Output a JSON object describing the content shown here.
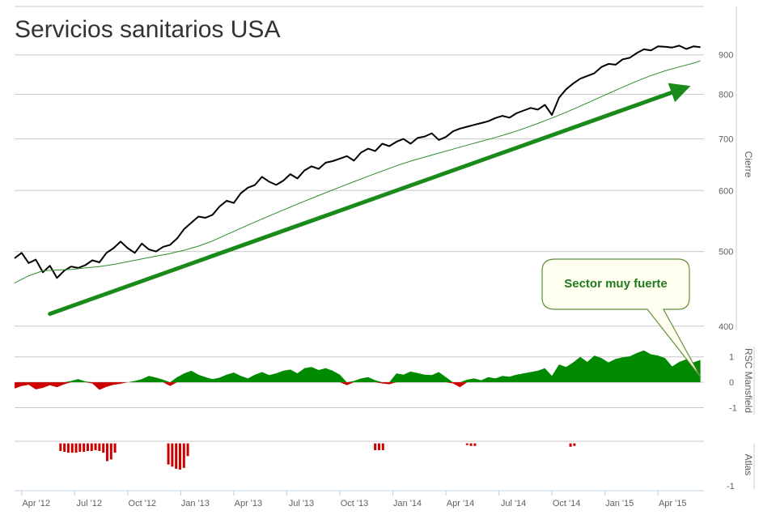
{
  "chart_data": [
    {
      "panel": "price",
      "type": "line",
      "title": "Servicios sanitarios USA",
      "ylabel": "Cierre",
      "xlabel": "",
      "yscale": "log",
      "y_ticks": [
        400,
        500,
        600,
        700,
        800,
        900
      ],
      "y_tick_labels": [
        "400",
        "500",
        "600",
        "700",
        "800",
        "900"
      ],
      "ylim": [
        380,
        1040
      ],
      "x_ticks": [
        "Apr '12",
        "Jul '12",
        "Oct '12",
        "Jan '13",
        "Apr '13",
        "Jul '13",
        "Oct '13",
        "Jan '14",
        "Apr '14",
        "Jul '14",
        "Oct '14",
        "Jan '15",
        "Apr '15"
      ],
      "x_tick_pos": [
        0.2,
        3.2,
        6.2,
        9.2,
        12.2,
        15.2,
        18.2,
        21.2,
        24.2,
        27.2,
        30.2,
        33.2,
        36.2
      ],
      "xlim": [
        -0.2,
        38.8
      ],
      "grid": true,
      "series": [
        {
          "role": "close",
          "color": "#000000",
          "x": [
            -0.2,
            0.2,
            0.6,
            1.0,
            1.4,
            1.8,
            2.2,
            2.6,
            3.0,
            3.4,
            3.8,
            4.2,
            4.6,
            5.0,
            5.4,
            5.8,
            6.2,
            6.6,
            7.0,
            7.4,
            7.8,
            8.2,
            8.6,
            9.0,
            9.4,
            9.8,
            10.2,
            10.6,
            11.0,
            11.4,
            11.8,
            12.2,
            12.6,
            13.0,
            13.4,
            13.8,
            14.2,
            14.6,
            15.0,
            15.4,
            15.8,
            16.2,
            16.6,
            17.0,
            17.4,
            17.8,
            18.2,
            18.6,
            19.0,
            19.4,
            19.8,
            20.2,
            20.6,
            21.0,
            21.4,
            21.8,
            22.2,
            22.6,
            23.0,
            23.4,
            23.8,
            24.2,
            24.6,
            25.0,
            25.4,
            25.8,
            26.2,
            26.6,
            27.0,
            27.4,
            27.8,
            28.2,
            28.6,
            29.0,
            29.4,
            29.8,
            30.2,
            30.6,
            31.0,
            31.4,
            31.8,
            32.2,
            32.6,
            33.0,
            33.4,
            33.8,
            34.2,
            34.6,
            35.0,
            35.4,
            35.8,
            36.2,
            36.6,
            37.0,
            37.4,
            37.8,
            38.2,
            38.6
          ],
          "values": [
            490,
            498,
            483,
            488,
            470,
            479,
            462,
            472,
            478,
            476,
            480,
            487,
            484,
            498,
            505,
            515,
            505,
            498,
            512,
            503,
            500,
            507,
            510,
            520,
            535,
            545,
            555,
            553,
            558,
            572,
            582,
            578,
            595,
            605,
            610,
            625,
            616,
            610,
            618,
            630,
            622,
            637,
            645,
            640,
            652,
            655,
            660,
            665,
            656,
            672,
            680,
            675,
            690,
            685,
            694,
            700,
            690,
            702,
            705,
            712,
            698,
            704,
            716,
            722,
            726,
            730,
            734,
            738,
            745,
            750,
            746,
            756,
            762,
            768,
            764,
            775,
            752,
            792,
            812,
            826,
            838,
            845,
            852,
            868,
            876,
            874,
            888,
            892,
            905,
            915,
            912,
            923,
            922,
            920,
            925,
            916,
            923,
            921
          ]
        },
        {
          "role": "moving-average",
          "color": "#2e8b2e",
          "x": [
            -0.2,
            0.6,
            1.4,
            2.2,
            3.0,
            3.8,
            4.6,
            5.4,
            6.2,
            7.0,
            7.8,
            8.6,
            9.4,
            10.2,
            11.0,
            11.8,
            12.6,
            13.4,
            14.2,
            15.0,
            15.8,
            16.6,
            17.4,
            18.2,
            19.0,
            19.8,
            20.6,
            21.4,
            22.2,
            23.0,
            23.8,
            24.6,
            25.4,
            26.2,
            27.0,
            27.8,
            28.6,
            29.4,
            30.2,
            31.0,
            31.8,
            32.6,
            33.4,
            34.2,
            35.0,
            35.8,
            36.6,
            37.4,
            38.2,
            38.6
          ],
          "values": [
            455,
            465,
            472,
            473,
            474,
            476,
            478,
            481,
            485,
            489,
            493,
            497,
            502,
            508,
            516,
            526,
            536,
            546,
            556,
            566,
            576,
            586,
            596,
            606,
            616,
            626,
            636,
            646,
            655,
            663,
            671,
            679,
            687,
            695,
            703,
            712,
            722,
            733,
            745,
            758,
            772,
            787,
            802,
            817,
            832,
            846,
            858,
            868,
            878,
            884
          ]
        }
      ],
      "trend_arrow": {
        "x": [
          1.8,
          37.5
        ],
        "values": [
          415,
          812
        ],
        "color": "#1a8a1a"
      },
      "annotations": [
        {
          "text": "Sector muy fuerte",
          "color": "#1f7a1f",
          "target_x": 38.4,
          "target_value": 0.72
        }
      ]
    },
    {
      "panel": "rsc",
      "type": "area",
      "ylabel": "RSC Mansfield",
      "y_ticks": [
        1,
        0,
        -1
      ],
      "y_tick_labels": [
        "1",
        "0",
        "-1"
      ],
      "ylim": [
        -1.4,
        1.5
      ],
      "positive_color": "#008a00",
      "negative_color": "#cc0000",
      "x": [
        -0.2,
        0.2,
        0.6,
        1.0,
        1.4,
        1.8,
        2.2,
        2.6,
        3.0,
        3.4,
        3.8,
        4.2,
        4.6,
        5.0,
        5.4,
        5.8,
        6.2,
        6.6,
        7.0,
        7.4,
        7.8,
        8.2,
        8.6,
        9.0,
        9.4,
        9.8,
        10.2,
        10.6,
        11.0,
        11.4,
        11.8,
        12.2,
        12.6,
        13.0,
        13.4,
        13.8,
        14.2,
        14.6,
        15.0,
        15.4,
        15.8,
        16.2,
        16.6,
        17.0,
        17.4,
        17.8,
        18.2,
        18.6,
        19.0,
        19.4,
        19.8,
        20.2,
        20.6,
        21.0,
        21.4,
        21.8,
        22.2,
        22.6,
        23.0,
        23.4,
        23.8,
        24.2,
        24.6,
        25.0,
        25.4,
        25.8,
        26.2,
        26.6,
        27.0,
        27.4,
        27.8,
        28.2,
        28.6,
        29.0,
        29.4,
        29.8,
        30.2,
        30.6,
        31.0,
        31.4,
        31.8,
        32.2,
        32.6,
        33.0,
        33.4,
        33.8,
        34.2,
        34.6,
        35.0,
        35.4,
        35.8,
        36.2,
        36.6,
        37.0,
        37.4,
        37.8,
        38.2,
        38.6
      ],
      "values": [
        -0.25,
        -0.15,
        -0.1,
        -0.28,
        -0.22,
        -0.12,
        -0.2,
        -0.08,
        0.05,
        0.12,
        0.03,
        -0.05,
        -0.3,
        -0.18,
        -0.1,
        -0.06,
        0.0,
        0.05,
        0.12,
        0.25,
        0.18,
        0.1,
        -0.15,
        0.2,
        0.35,
        0.45,
        0.3,
        0.2,
        0.12,
        0.18,
        0.3,
        0.38,
        0.25,
        0.15,
        0.3,
        0.4,
        0.28,
        0.35,
        0.45,
        0.5,
        0.35,
        0.55,
        0.6,
        0.48,
        0.55,
        0.45,
        0.3,
        -0.12,
        0.05,
        0.15,
        0.2,
        0.08,
        -0.05,
        -0.08,
        0.35,
        0.3,
        0.42,
        0.36,
        0.3,
        0.28,
        0.4,
        0.2,
        -0.05,
        -0.2,
        0.1,
        0.15,
        0.08,
        0.2,
        0.15,
        0.25,
        0.22,
        0.3,
        0.35,
        0.4,
        0.45,
        0.55,
        0.25,
        0.7,
        0.6,
        0.78,
        1.0,
        0.8,
        1.05,
        0.95,
        0.78,
        0.92,
        0.98,
        1.02,
        1.15,
        1.25,
        1.1,
        1.05,
        0.95,
        0.62,
        0.8,
        0.9,
        0.78,
        0.88
      ]
    },
    {
      "panel": "atlas",
      "type": "bar",
      "ylabel": "Atlas",
      "y_ticks": [
        -1
      ],
      "y_tick_labels": [
        "-1"
      ],
      "ylim": [
        -1.1,
        0.05
      ],
      "color": "#cc0000",
      "x": [
        2.4,
        2.62,
        2.84,
        3.06,
        3.28,
        3.5,
        3.72,
        3.94,
        4.16,
        4.38,
        4.6,
        4.82,
        5.04,
        5.26,
        5.48,
        8.5,
        8.72,
        8.94,
        9.16,
        9.38,
        9.6,
        20.2,
        20.42,
        20.64,
        25.4,
        25.62,
        25.84,
        31.25,
        31.47
      ],
      "values": [
        -0.18,
        -0.2,
        -0.22,
        -0.22,
        -0.22,
        -0.2,
        -0.2,
        -0.18,
        -0.18,
        -0.16,
        -0.18,
        -0.22,
        -0.42,
        -0.38,
        -0.22,
        -0.5,
        -0.55,
        -0.6,
        -0.62,
        -0.58,
        -0.3,
        -0.16,
        -0.16,
        -0.16,
        -0.04,
        -0.06,
        -0.06,
        -0.08,
        -0.06
      ]
    }
  ]
}
